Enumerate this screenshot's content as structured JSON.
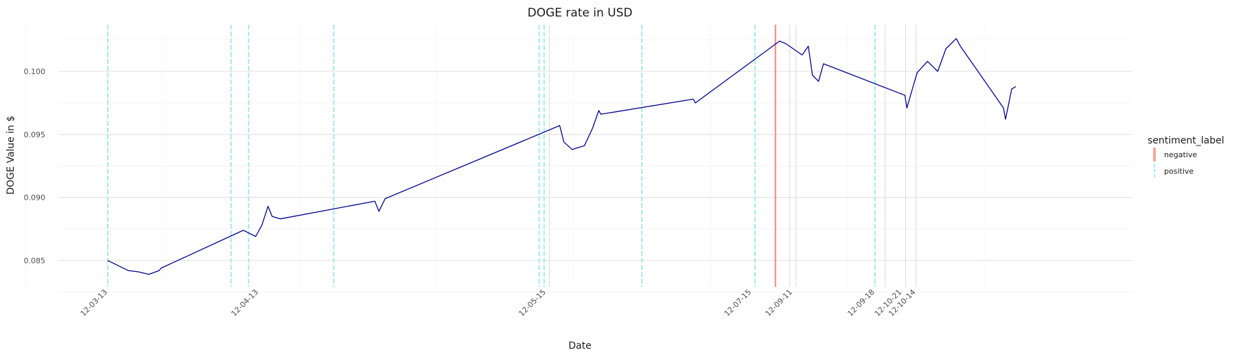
{
  "chart_data": {
    "type": "line",
    "title": "DOGE rate in USD",
    "xlabel": "Date",
    "ylabel": "DOGE Value in $",
    "ylim": [
      0.0829,
      0.1037
    ],
    "y_ticks": [
      "0.085",
      "0.090",
      "0.095",
      "0.100"
    ],
    "y_tick_values": [
      0.085,
      0.09,
      0.095,
      0.1
    ],
    "x_ticks": [
      "12-03-13",
      "12-04-13",
      "12-05-15",
      "12-07-15",
      "12-09-11",
      "12-09-18",
      "12-10-21",
      "12-10-14"
    ],
    "x_tick_values": [
      2.0,
      5.67,
      12.67,
      17.67,
      18.67,
      20.67,
      21.33,
      21.67
    ],
    "xlim": [
      0,
      25
    ],
    "grid": true,
    "line_color": "#00008b",
    "series": [
      {
        "values": [
          [
            2.0,
            0.085
          ],
          [
            2.25,
            0.0846
          ],
          [
            2.5,
            0.0842
          ],
          [
            2.75,
            0.0841
          ],
          [
            3.0,
            0.0839
          ],
          [
            3.25,
            0.0842
          ],
          [
            3.3,
            0.0844
          ],
          [
            5.3,
            0.0874
          ],
          [
            5.6,
            0.0869
          ],
          [
            5.75,
            0.0878
          ],
          [
            5.9,
            0.0893
          ],
          [
            6.0,
            0.0885
          ],
          [
            6.2,
            0.0883
          ],
          [
            8.5,
            0.0897
          ],
          [
            8.6,
            0.0889
          ],
          [
            8.75,
            0.0899
          ],
          [
            13.0,
            0.0957
          ],
          [
            13.1,
            0.0944
          ],
          [
            13.3,
            0.0938
          ],
          [
            13.6,
            0.0941
          ],
          [
            13.8,
            0.0955
          ],
          [
            13.95,
            0.0969
          ],
          [
            14.0,
            0.0966
          ],
          [
            16.25,
            0.0978
          ],
          [
            16.3,
            0.0975
          ],
          [
            18.35,
            0.1024
          ],
          [
            18.5,
            0.1022
          ],
          [
            18.9,
            0.1013
          ],
          [
            19.05,
            0.102
          ],
          [
            19.15,
            0.0997
          ],
          [
            19.3,
            0.0992
          ],
          [
            19.42,
            0.1006
          ],
          [
            21.4,
            0.0981
          ],
          [
            21.45,
            0.0971
          ],
          [
            21.6,
            0.0988
          ],
          [
            21.7,
            0.0999
          ],
          [
            21.95,
            0.1008
          ],
          [
            22.2,
            0.1
          ],
          [
            22.4,
            0.1018
          ],
          [
            22.65,
            0.1026
          ],
          [
            22.75,
            0.102
          ],
          [
            23.8,
            0.0971
          ],
          [
            23.85,
            0.0962
          ],
          [
            24.0,
            0.0986
          ],
          [
            24.1,
            0.0988
          ]
        ]
      }
    ],
    "vlines": {
      "positive": [
        2.0,
        5.0,
        5.43,
        7.5,
        12.5,
        12.62,
        15.0,
        17.75,
        20.67
      ],
      "negative": [
        18.25
      ],
      "other": [
        12.75,
        18.6,
        18.75,
        20.92,
        21.42,
        21.67
      ]
    },
    "legend": {
      "title": "sentiment_label",
      "placement": "right",
      "entries": [
        {
          "label": "negative",
          "color": "#f8766d"
        },
        {
          "label": "positive",
          "color": "#00bfc4"
        }
      ]
    }
  }
}
